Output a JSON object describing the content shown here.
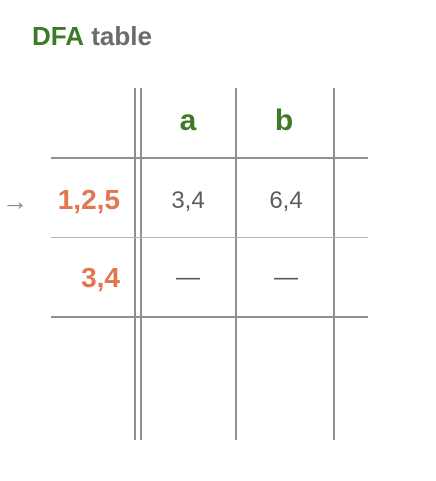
{
  "title": {
    "highlight": "DFA",
    "rest": "table"
  },
  "table": {
    "columns": [
      "a",
      "b"
    ],
    "rows": [
      {
        "state": "1,2,5",
        "is_start": true,
        "cells": [
          "3,4",
          "6,4"
        ]
      },
      {
        "state": "3,4",
        "is_start": false,
        "cells": [
          "—",
          "—"
        ]
      }
    ]
  },
  "icons": {
    "start_marker": "right-arrow-icon",
    "start_glyph": "→"
  }
}
